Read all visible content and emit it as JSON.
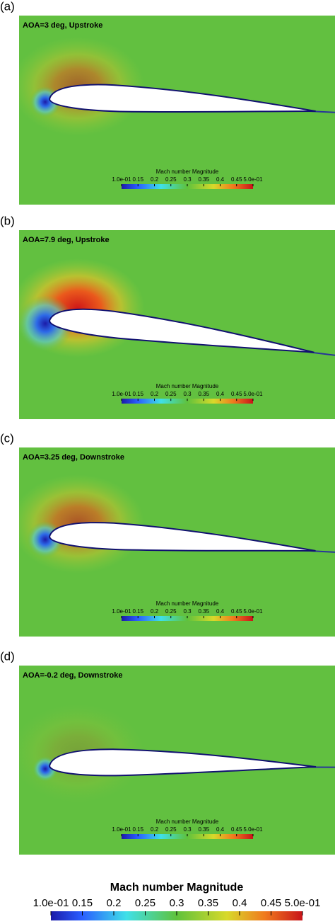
{
  "panels": [
    {
      "label": "(a)",
      "annotation": "AOA=3 deg, Upstroke"
    },
    {
      "label": "(b)",
      "annotation": "AOA=7.9 deg, Upstroke"
    },
    {
      "label": "(c)",
      "annotation": "AOA=3.25 deg, Downstroke"
    },
    {
      "label": "(d)",
      "annotation": "AOA=-0.2 deg, Downstroke"
    }
  ],
  "colorbar": {
    "title": "Mach number Magnitude",
    "lim": [
      0.1,
      0.5
    ],
    "ticks": [
      {
        "value": 0.1,
        "label": "1.0e-01"
      },
      0.15,
      0.2,
      0.25,
      0.3,
      0.35,
      0.4,
      0.45,
      {
        "value": 0.5,
        "label": "5.0e-01"
      }
    ]
  }
}
